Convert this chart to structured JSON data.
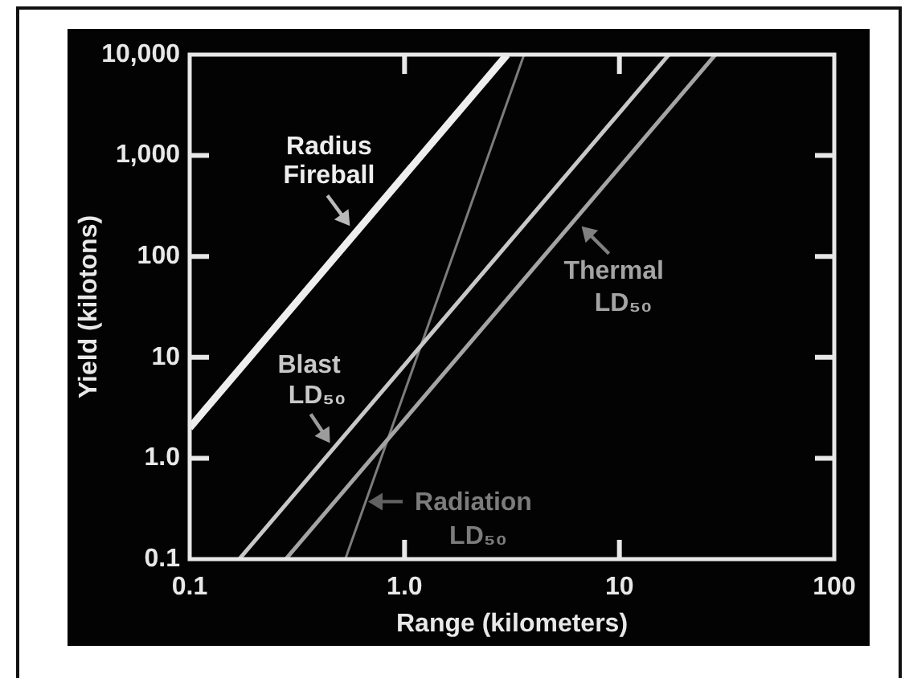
{
  "chart_data": {
    "type": "line",
    "xlabel": "Range (kilometers)",
    "ylabel": "Yield (kilotons)",
    "log": "xy",
    "xlim": [
      0.1,
      100
    ],
    "ylim": [
      0.1,
      10000
    ],
    "xticks": [
      0.1,
      {
        "value": 1,
        "label": "1.0"
      },
      10,
      100
    ],
    "yticks": [
      0.1,
      {
        "value": 1,
        "label": "1.0"
      },
      10,
      100,
      {
        "value": 1000,
        "label": "1,000"
      },
      {
        "value": 10000,
        "label": "10,000"
      }
    ],
    "grid": false,
    "legend": false,
    "marker": "none",
    "series": [
      {
        "name": "Radius Fireball",
        "color": "#eeeeee",
        "x": [
          0.1,
          3
        ],
        "values": [
          2,
          10000
        ]
      },
      {
        "name": "Blast LD₅₀",
        "color": "#c8c8c8",
        "x": [
          0.17,
          17
        ],
        "values": [
          0.1,
          10000
        ]
      },
      {
        "name": "Thermal LD₅₀",
        "color": "#a4a4a4",
        "x": [
          0.28,
          28
        ],
        "values": [
          0.1,
          10000
        ]
      },
      {
        "name": "Radiation LD₅₀",
        "color": "#7c7c7c",
        "x": [
          0.53,
          3.6
        ],
        "values": [
          0.1,
          10000
        ]
      }
    ]
  }
}
